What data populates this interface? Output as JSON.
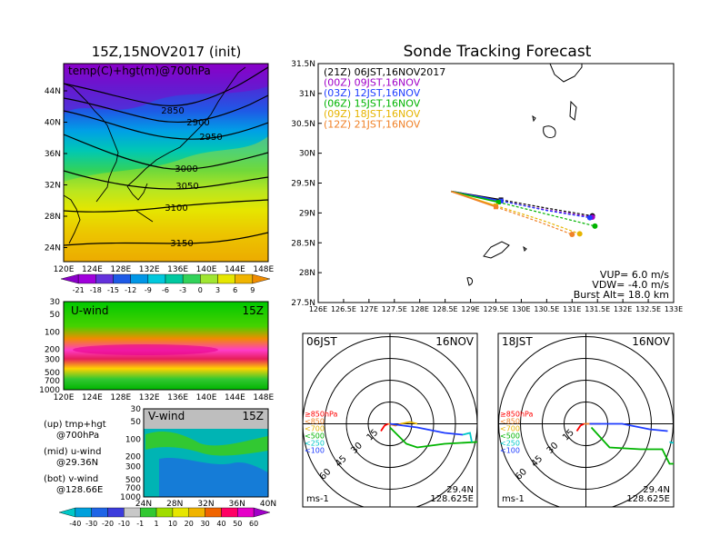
{
  "left": {
    "title": "15Z,15NOV2017 (init)",
    "map_label": "temp(C)+hgt(m)@700hPa",
    "lat_ticks": [
      "44N",
      "40N",
      "36N",
      "32N",
      "28N",
      "24N"
    ],
    "lon_ticks": [
      "120E",
      "124E",
      "128E",
      "132E",
      "136E",
      "140E",
      "144E",
      "148E"
    ],
    "contours": [
      "2850",
      "2900",
      "2950",
      "3000",
      "3050",
      "3100",
      "3150"
    ],
    "temp_colorbar": [
      "-21",
      "-18",
      "-15",
      "-12",
      "-9",
      "-6",
      "-3",
      "0",
      "3",
      "6",
      "9"
    ],
    "uwind_label": "U-wind",
    "uwind_time": "15Z",
    "p_ticks": [
      "30",
      "50",
      "100",
      "200",
      "300",
      "500",
      "700",
      "1000"
    ],
    "vwind_label": "V-wind",
    "vwind_time": "15Z",
    "vwind_lat_ticks": [
      "24N",
      "28N",
      "32N",
      "36N",
      "40N"
    ],
    "wind_colorbar": [
      "-40",
      "-30",
      "-20",
      "-10",
      "-1",
      "1",
      "10",
      "20",
      "30",
      "40",
      "50",
      "60"
    ],
    "legend": {
      "up_a": "(up) tmp+hgt",
      "up_b": "@700hPa",
      "mid_a": "(mid) u-wind",
      "mid_b": "@29.36N",
      "bot_a": "(bot) v-wind",
      "bot_b": "@128.66E"
    }
  },
  "track": {
    "title": "Sonde Tracking Forecast",
    "lat_ticks": [
      "31.5N",
      "31N",
      "30.5N",
      "30N",
      "29.5N",
      "29N",
      "28.5N",
      "28N",
      "27.5N"
    ],
    "lon_ticks": [
      "126E",
      "126.5E",
      "127E",
      "127.5E",
      "128E",
      "128.5E",
      "129E",
      "129.5E",
      "130E",
      "130.5E",
      "131E",
      "131.5E",
      "132E",
      "132.5E",
      "133E"
    ],
    "legend": [
      {
        "text": "(21Z)  06JST,16NOV2017",
        "color": "#000000"
      },
      {
        "text": "(00Z)  09JST,16NOV",
        "color": "#a000c8"
      },
      {
        "text": "(03Z)  12JST,16NOV",
        "color": "#1e3cff"
      },
      {
        "text": "(06Z)  15JST,16NOV",
        "color": "#00b400"
      },
      {
        "text": "(09Z)  18JST,16NOV",
        "color": "#e6b400"
      },
      {
        "text": "(12Z)  21JST,16NOV",
        "color": "#f08228"
      }
    ],
    "params": {
      "vup": "VUP= 6.0 m/s",
      "vdw": "VDW= -4.0 m/s",
      "burst": "Burst Alt= 18.0 km"
    }
  },
  "chart_data": [
    {
      "type": "line",
      "title": "Sonde Tracking Forecast",
      "xlim": [
        126,
        133
      ],
      "ylim": [
        27.5,
        31.5
      ],
      "series": [
        {
          "name": "(21Z) 06JST,16NOV2017",
          "color": "#000000",
          "points": [
            [
              128.62,
              29.36
            ],
            [
              129.6,
              29.22
            ],
            [
              130.5,
              29.08
            ],
            [
              131.4,
              28.95
            ]
          ]
        },
        {
          "name": "(00Z) 09JST,16NOV",
          "color": "#a000c8",
          "points": [
            [
              128.62,
              29.36
            ],
            [
              129.6,
              29.2
            ],
            [
              130.5,
              29.05
            ],
            [
              131.4,
              28.93
            ]
          ]
        },
        {
          "name": "(03Z) 12JST,16NOV",
          "color": "#1e3cff",
          "points": [
            [
              128.62,
              29.36
            ],
            [
              129.6,
              29.2
            ],
            [
              130.5,
              29.04
            ],
            [
              131.35,
              28.92
            ]
          ]
        },
        {
          "name": "(06Z) 15JST,16NOV",
          "color": "#00b400",
          "points": [
            [
              128.62,
              29.36
            ],
            [
              129.55,
              29.18
            ],
            [
              130.5,
              28.98
            ],
            [
              131.45,
              28.78
            ]
          ]
        },
        {
          "name": "(09Z) 18JST,16NOV",
          "color": "#e6b400",
          "points": [
            [
              128.62,
              29.36
            ],
            [
              129.5,
              29.12
            ],
            [
              130.4,
              28.88
            ],
            [
              131.15,
              28.65
            ]
          ]
        },
        {
          "name": "(12Z) 21JST,16NOV",
          "color": "#f08228",
          "points": [
            [
              128.62,
              29.36
            ],
            [
              129.5,
              29.1
            ],
            [
              130.35,
              28.85
            ],
            [
              131.0,
              28.64
            ]
          ]
        }
      ]
    }
  ],
  "hodo1": {
    "left_label": "06JST",
    "right_label": "16NOV",
    "ring_labels": [
      "15",
      "30",
      "45",
      "60"
    ],
    "units": "ms-1",
    "lat": "29.4N",
    "lon": "128.625E",
    "plevels": [
      {
        "text": "≥850hPa",
        "color": "#ff0000"
      },
      {
        "text": "<850",
        "color": "#f08228"
      },
      {
        "text": "<700",
        "color": "#e6b400"
      },
      {
        "text": "<500",
        "color": "#00b400"
      },
      {
        "text": "<250",
        "color": "#00c8c8"
      },
      {
        "text": "<100",
        "color": "#1e3cff"
      }
    ]
  },
  "hodo2": {
    "left_label": "18JST",
    "right_label": "16NOV",
    "ring_labels": [
      "15",
      "30",
      "45",
      "60"
    ],
    "units": "ms-1",
    "lat": "29.4N",
    "lon": "128.625E",
    "plevels": [
      {
        "text": "≥850hPa",
        "color": "#ff0000"
      },
      {
        "text": "<850",
        "color": "#f08228"
      },
      {
        "text": "<700",
        "color": "#e6b400"
      },
      {
        "text": "<500",
        "color": "#00b400"
      },
      {
        "text": "<250",
        "color": "#00c8c8"
      },
      {
        "text": "<100",
        "color": "#1e3cff"
      }
    ]
  }
}
